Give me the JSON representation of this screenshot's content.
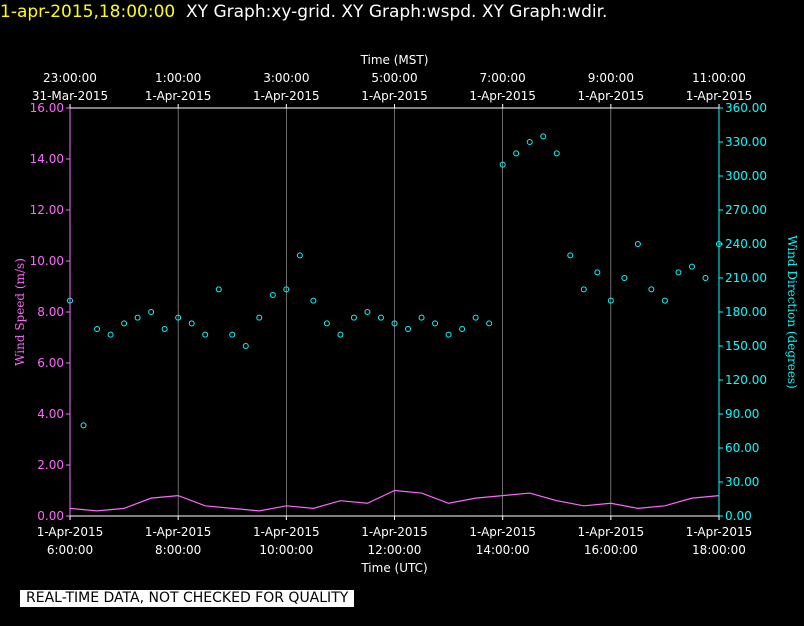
{
  "header": {
    "timestamp": "1-apr-2015,18:00:00",
    "graphs": "XY Graph:xy-grid.  XY Graph:wspd.  XY Graph:wdir."
  },
  "footer": {
    "notice": "REAL-TIME DATA, NOT CHECKED FOR QUALITY"
  },
  "colors": {
    "background": "#000000",
    "wind_speed": "#ff66ff",
    "wind_direction": "#00ffff",
    "grid": "#ffffff",
    "timestamp": "#ffff00"
  },
  "chart_data": {
    "type": "scatter",
    "xlabel_top": "Time (MST)",
    "xlabel_bottom": "Time (UTC)",
    "ylabel_left": "Wind Speed (m/s)",
    "ylabel_right": "Wind Direction (degrees)",
    "xlim_utc_hours": [
      6,
      18
    ],
    "ylim_left": [
      0,
      16
    ],
    "ylim_right": [
      0,
      360
    ],
    "grid": true,
    "x_ticks_bottom": [
      {
        "time": "6:00:00",
        "date": "1-Apr-2015"
      },
      {
        "time": "8:00:00",
        "date": "1-Apr-2015"
      },
      {
        "time": "10:00:00",
        "date": "1-Apr-2015"
      },
      {
        "time": "12:00:00",
        "date": "1-Apr-2015"
      },
      {
        "time": "14:00:00",
        "date": "1-Apr-2015"
      },
      {
        "time": "16:00:00",
        "date": "1-Apr-2015"
      },
      {
        "time": "18:00:00",
        "date": "1-Apr-2015"
      }
    ],
    "x_ticks_top": [
      {
        "time": "23:00:00",
        "date": "31-Mar-2015"
      },
      {
        "time": "1:00:00",
        "date": "1-Apr-2015"
      },
      {
        "time": "3:00:00",
        "date": "1-Apr-2015"
      },
      {
        "time": "5:00:00",
        "date": "1-Apr-2015"
      },
      {
        "time": "7:00:00",
        "date": "1-Apr-2015"
      },
      {
        "time": "9:00:00",
        "date": "1-Apr-2015"
      },
      {
        "time": "11:00:00",
        "date": "1-Apr-2015"
      }
    ],
    "y_ticks_left": [
      "0.00",
      "2.00",
      "4.00",
      "6.00",
      "8.00",
      "10.00",
      "12.00",
      "14.00",
      "16.00"
    ],
    "y_ticks_right": [
      "0.00",
      "30.00",
      "60.00",
      "90.00",
      "120.00",
      "150.00",
      "180.00",
      "210.00",
      "240.00",
      "270.00",
      "300.00",
      "330.00",
      "360.00"
    ],
    "series": [
      {
        "name": "Wind Speed",
        "axis": "left",
        "style": "line",
        "x": [
          6.0,
          6.5,
          7.0,
          7.5,
          8.0,
          8.5,
          9.0,
          9.5,
          10.0,
          10.5,
          11.0,
          11.5,
          12.0,
          12.5,
          13.0,
          13.5,
          14.0,
          14.5,
          15.0,
          15.5,
          16.0,
          16.5,
          17.0,
          17.5,
          18.0
        ],
        "y": [
          0.3,
          0.2,
          0.3,
          0.7,
          0.8,
          0.4,
          0.3,
          0.2,
          0.4,
          0.3,
          0.6,
          0.5,
          1.0,
          0.9,
          0.5,
          0.7,
          0.8,
          0.9,
          0.6,
          0.4,
          0.5,
          0.3,
          0.4,
          0.7,
          0.8
        ]
      },
      {
        "name": "Wind Direction",
        "axis": "right",
        "style": "circles",
        "x": [
          6.0,
          6.25,
          6.5,
          6.75,
          7.0,
          7.25,
          7.5,
          7.75,
          8.0,
          8.25,
          8.5,
          8.75,
          9.0,
          9.25,
          9.5,
          9.75,
          10.0,
          10.25,
          10.5,
          10.75,
          11.0,
          11.25,
          11.5,
          11.75,
          12.0,
          12.25,
          12.5,
          12.75,
          13.0,
          13.25,
          13.5,
          13.75,
          14.0,
          14.25,
          14.5,
          14.75,
          15.0,
          15.25,
          15.5,
          15.75,
          16.0,
          16.25,
          16.5,
          16.75,
          17.0,
          17.25,
          17.5,
          17.75,
          18.0
        ],
        "y": [
          190,
          80,
          165,
          160,
          170,
          175,
          180,
          165,
          175,
          170,
          160,
          200,
          160,
          150,
          175,
          195,
          200,
          230,
          190,
          170,
          160,
          175,
          180,
          175,
          170,
          165,
          175,
          170,
          160,
          165,
          175,
          170,
          310,
          320,
          330,
          335,
          320,
          230,
          200,
          215,
          190,
          210,
          240,
          200,
          190,
          215,
          220,
          210,
          240
        ]
      }
    ]
  }
}
